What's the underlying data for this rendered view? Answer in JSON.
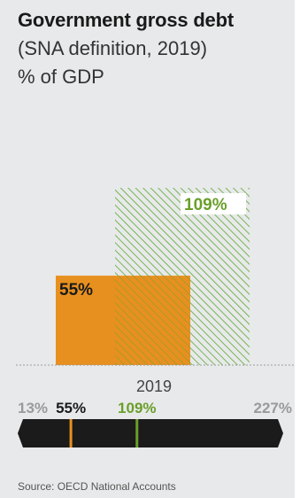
{
  "header": {
    "title": "Government gross debt",
    "subtitle": "(SNA definition, 2019)",
    "unit": "% of GDP"
  },
  "chart_data": {
    "type": "bar",
    "categories": [
      "2019"
    ],
    "series": [
      {
        "values": [
          55
        ],
        "label": "55%",
        "color": "#e8901f",
        "pattern": "solid"
      },
      {
        "values": [
          109
        ],
        "label": "109%",
        "color": "#5aa833",
        "pattern": "hatched"
      }
    ],
    "scale": {
      "min_label": "13%",
      "max_label": "227%",
      "min": 13,
      "max": 227
    },
    "markers": [
      {
        "value": 55,
        "label": "55%",
        "color": "#e8901f",
        "text_color": "#1a1a1a"
      },
      {
        "value": 109,
        "label": "109%",
        "color": "#6a9f2a",
        "text_color": "#6a9f2a"
      }
    ],
    "ylim": [
      0,
      140
    ]
  },
  "footer": {
    "source": "Source: OECD National Accounts"
  }
}
